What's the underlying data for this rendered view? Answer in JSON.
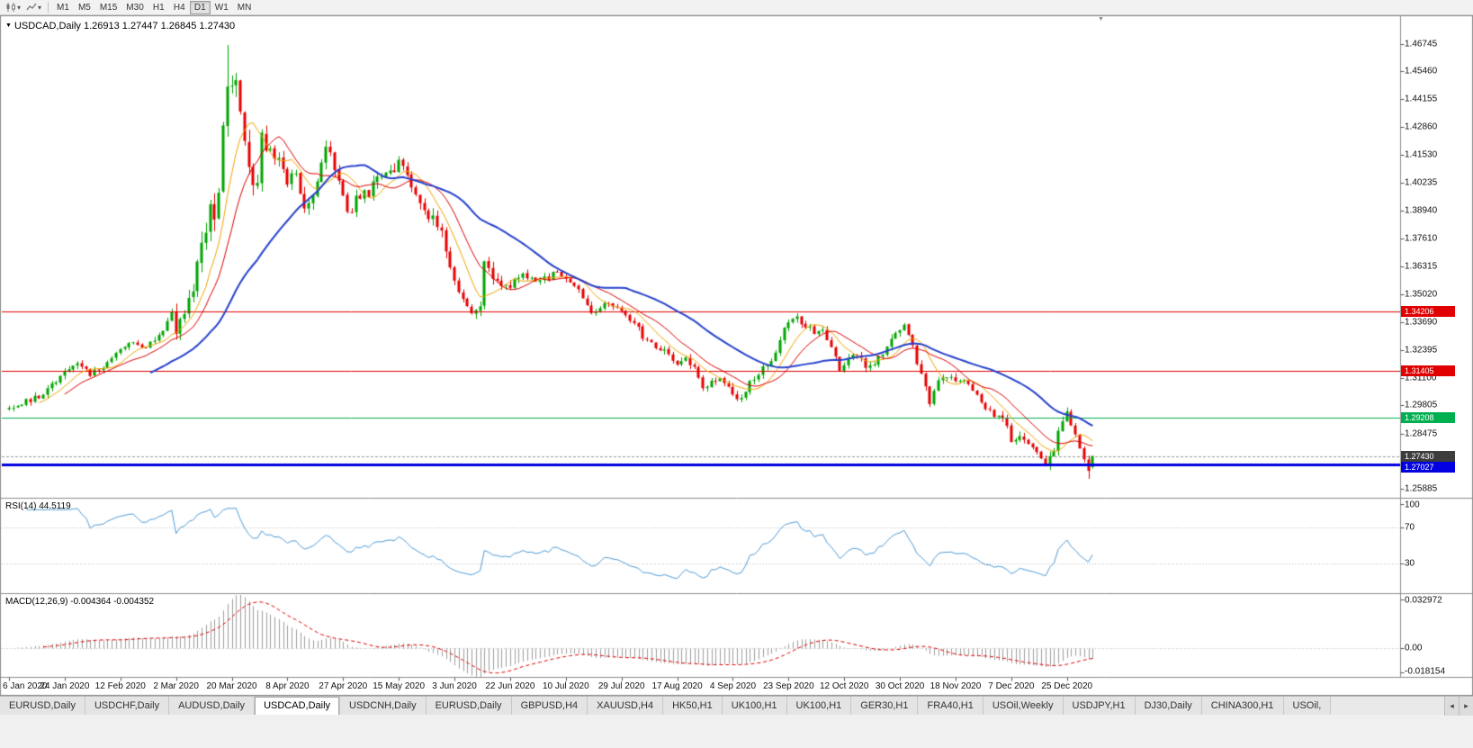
{
  "toolbar": {
    "chart_type_dropdown": {
      "icon": "candlestick-chart-icon",
      "arrow": "▾"
    },
    "view_dropdown": {
      "icon": "line-chart-icon",
      "arrow": "▾"
    },
    "timeframes": [
      "M1",
      "M5",
      "M15",
      "M30",
      "H1",
      "H4",
      "D1",
      "W1",
      "MN"
    ],
    "active_timeframe": "D1"
  },
  "chart_window": {
    "collapse_marker": "▼",
    "title": "USDCAD,Daily 1.26913 1.27447 1.26845 1.27430",
    "shift_marker": "▼"
  },
  "rsi_panel": {
    "label": "RSI(14) 44.5119"
  },
  "macd_panel": {
    "label": "MACD(12,26,9) -0.004364 -0.004352"
  },
  "tab_bar": {
    "tabs": [
      "EURUSD,Daily",
      "USDCHF,Daily",
      "AUDUSD,Daily",
      "USDCAD,Daily",
      "USDCNH,Daily",
      "EURUSD,Daily",
      "GBPUSD,H4",
      "XAUUSD,H4",
      "HK50,H1",
      "UK100,H1",
      "UK100,H1",
      "GER30,H1",
      "FRA40,H1",
      "USOil,Weekly",
      "USDJPY,H1",
      "DJ30,Daily",
      "CHINA300,H1",
      "USOil,"
    ],
    "active_index": 3,
    "scroll_left": "◂",
    "scroll_right": "▸"
  },
  "chart_data": {
    "type": "candlestick",
    "symbol": "USDCAD",
    "period": "Daily",
    "ohlc": {
      "open": 1.26913,
      "high": 1.27447,
      "low": 1.26845,
      "close": 1.2743
    },
    "num_bars": 254,
    "bars_per_label": 13,
    "seed": 20,
    "x_labels": [
      "6 Jan 2020",
      "24 Jan 2020",
      "12 Feb 2020",
      "2 Mar 2020",
      "20 Mar 2020",
      "8 Apr 2020",
      "27 Apr 2020",
      "15 May 2020",
      "3 Jun 2020",
      "22 Jun 2020",
      "10 Jul 2020",
      "29 Jul 2020",
      "17 Aug 2020",
      "4 Sep 2020",
      "23 Sep 2020",
      "12 Oct 2020",
      "30 Oct 2020",
      "18 Nov 2020",
      "7 Dec 2020",
      "25 Dec 2020"
    ],
    "price_ticks": [
      "1.46745",
      "1.45460",
      "1.44155",
      "1.42860",
      "1.41530",
      "1.40235",
      "1.38940",
      "1.37610",
      "1.36315",
      "1.35020",
      "1.33690",
      "1.32395",
      "1.31100",
      "1.29805",
      "1.28475",
      "1.25885"
    ],
    "price_range": {
      "min": 1.256,
      "max": 1.48
    },
    "close_anchors": [
      [
        0,
        1.2962
      ],
      [
        4,
        1.2998
      ],
      [
        8,
        1.303
      ],
      [
        13,
        1.314
      ],
      [
        16,
        1.3172
      ],
      [
        19,
        1.3125
      ],
      [
        22,
        1.3165
      ],
      [
        26,
        1.3255
      ],
      [
        29,
        1.3288
      ],
      [
        31,
        1.3242
      ],
      [
        34,
        1.3282
      ],
      [
        36,
        1.332
      ],
      [
        38,
        1.3438
      ],
      [
        39,
        1.333
      ],
      [
        41,
        1.3405
      ],
      [
        43,
        1.353
      ],
      [
        44,
        1.3695
      ],
      [
        46,
        1.376
      ],
      [
        47,
        1.3915
      ],
      [
        48,
        1.3825
      ],
      [
        49,
        1.399
      ],
      [
        50,
        1.4258
      ],
      [
        51,
        1.45
      ],
      [
        52,
        1.4445
      ],
      [
        53,
        1.4478
      ],
      [
        54,
        1.435
      ],
      [
        55,
        1.4228
      ],
      [
        56,
        1.406
      ],
      [
        57,
        1.3982
      ],
      [
        58,
        1.4052
      ],
      [
        59,
        1.4228
      ],
      [
        60,
        1.419
      ],
      [
        62,
        1.4148
      ],
      [
        64,
        1.409
      ],
      [
        65,
        1.4022
      ],
      [
        67,
        1.4078
      ],
      [
        69,
        1.3905
      ],
      [
        71,
        1.3988
      ],
      [
        73,
        1.4118
      ],
      [
        74,
        1.4205
      ],
      [
        76,
        1.4082
      ],
      [
        78,
        1.3952
      ],
      [
        79,
        1.3872
      ],
      [
        81,
        1.3938
      ],
      [
        84,
        1.3982
      ],
      [
        86,
        1.4048
      ],
      [
        89,
        1.4062
      ],
      [
        91,
        1.4108
      ],
      [
        93,
        1.4058
      ],
      [
        95,
        1.3972
      ],
      [
        97,
        1.3902
      ],
      [
        99,
        1.3848
      ],
      [
        101,
        1.3782
      ],
      [
        103,
        1.3642
      ],
      [
        104,
        1.3562
      ],
      [
        106,
        1.3482
      ],
      [
        108,
        1.3422
      ],
      [
        110,
        1.3438
      ],
      [
        111,
        1.3638
      ],
      [
        113,
        1.3578
      ],
      [
        115,
        1.354
      ],
      [
        117,
        1.3552
      ],
      [
        120,
        1.3588
      ],
      [
        123,
        1.3572
      ],
      [
        126,
        1.3578
      ],
      [
        128,
        1.3608
      ],
      [
        130,
        1.3582
      ],
      [
        132,
        1.3548
      ],
      [
        134,
        1.3482
      ],
      [
        136,
        1.3412
      ],
      [
        138,
        1.3448
      ],
      [
        140,
        1.3468
      ],
      [
        142,
        1.3442
      ],
      [
        144,
        1.3402
      ],
      [
        146,
        1.3378
      ],
      [
        148,
        1.3302
      ],
      [
        150,
        1.3272
      ],
      [
        152,
        1.3248
      ],
      [
        154,
        1.3222
      ],
      [
        156,
        1.3182
      ],
      [
        158,
        1.3202
      ],
      [
        160,
        1.3148
      ],
      [
        162,
        1.3062
      ],
      [
        164,
        1.3092
      ],
      [
        166,
        1.3108
      ],
      [
        168,
        1.3062
      ],
      [
        170,
        1.3002
      ],
      [
        172,
        1.3058
      ],
      [
        174,
        1.3102
      ],
      [
        176,
        1.3158
      ],
      [
        178,
        1.3202
      ],
      [
        180,
        1.3282
      ],
      [
        182,
        1.3378
      ],
      [
        184,
        1.3392
      ],
      [
        186,
        1.3358
      ],
      [
        188,
        1.3322
      ],
      [
        190,
        1.3338
      ],
      [
        192,
        1.3252
      ],
      [
        194,
        1.3142
      ],
      [
        196,
        1.3202
      ],
      [
        198,
        1.3228
      ],
      [
        200,
        1.3152
      ],
      [
        202,
        1.3178
      ],
      [
        204,
        1.3228
      ],
      [
        206,
        1.3298
      ],
      [
        208,
        1.3332
      ],
      [
        209,
        1.3368
      ],
      [
        211,
        1.3252
      ],
      [
        213,
        1.3122
      ],
      [
        215,
        1.2992
      ],
      [
        217,
        1.3098
      ],
      [
        219,
        1.3118
      ],
      [
        221,
        1.3082
      ],
      [
        223,
        1.3092
      ],
      [
        225,
        1.3048
      ],
      [
        227,
        1.2992
      ],
      [
        229,
        1.2952
      ],
      [
        231,
        1.2928
      ],
      [
        233,
        1.2888
      ],
      [
        234,
        1.2812
      ],
      [
        236,
        1.2822
      ],
      [
        238,
        1.2798
      ],
      [
        240,
        1.2758
      ],
      [
        242,
        1.2706
      ],
      [
        243,
        1.2726
      ],
      [
        244,
        1.2782
      ],
      [
        245,
        1.2852
      ],
      [
        246,
        1.2912
      ],
      [
        247,
        1.2942
      ],
      [
        248,
        1.2888
      ],
      [
        249,
        1.2832
      ],
      [
        250,
        1.2788
      ],
      [
        251,
        1.2742
      ],
      [
        252,
        1.2682
      ],
      [
        253,
        1.2743
      ]
    ],
    "volatility_zones": [
      [
        0,
        37,
        0.0026
      ],
      [
        38,
        43,
        0.0055
      ],
      [
        44,
        60,
        0.0085
      ],
      [
        61,
        103,
        0.005
      ],
      [
        104,
        117,
        0.0042
      ],
      [
        118,
        170,
        0.0027
      ],
      [
        171,
        233,
        0.003
      ],
      [
        234,
        253,
        0.0033
      ]
    ],
    "last_bar": [
      1.26913,
      1.27447,
      1.26845,
      1.2743
    ],
    "peak_bar": 51,
    "peak_high": 1.4669,
    "low_bar": 252,
    "low_price": 1.2636,
    "candle_colors": {
      "up": "#00a400",
      "down": "#e60000"
    },
    "moving_averages": [
      {
        "period": 8,
        "color": "#f0a500",
        "width": 1
      },
      {
        "period": 14,
        "color": "#dd0000",
        "width": 1
      },
      {
        "period": 34,
        "color": "#2742cc",
        "width": 2
      }
    ],
    "hlines": [
      {
        "value": 1.34206,
        "label": "1.34206",
        "color": "#e00000",
        "width": 1
      },
      {
        "value": 1.31405,
        "label": "1.31405",
        "color": "#e00000",
        "width": 1
      },
      {
        "value": 1.29208,
        "label": "1.29208",
        "color": "#00b050",
        "width": 1
      },
      {
        "value": 1.27027,
        "label": "1.27027",
        "color": "#0000e0",
        "width": 3
      }
    ],
    "current_price": {
      "value": 1.2743,
      "label": "1.27430",
      "tag_color": "#3d3d3d",
      "line_color": "#9a9a9a"
    },
    "rsi": {
      "period": 14,
      "color": "#4f9bd5",
      "levels": [
        70,
        30
      ],
      "range": [
        0,
        100
      ],
      "ticks": [
        {
          "label": "100",
          "value": 100
        },
        {
          "label": "70",
          "value": 70
        },
        {
          "label": "30",
          "value": 30
        }
      ]
    },
    "macd": {
      "fast": 12,
      "slow": 26,
      "signal": 9,
      "histogram_color": "#9e9e9e",
      "signal_color": "#e00000",
      "scale": {
        "min": -0.018154,
        "max": 0.032972
      },
      "ticks": [
        {
          "label": "0.032972",
          "value": 0.032972
        },
        {
          "label": "0.00",
          "value": 0
        },
        {
          "label": "-0.018154",
          "value": -0.018154
        }
      ]
    }
  }
}
